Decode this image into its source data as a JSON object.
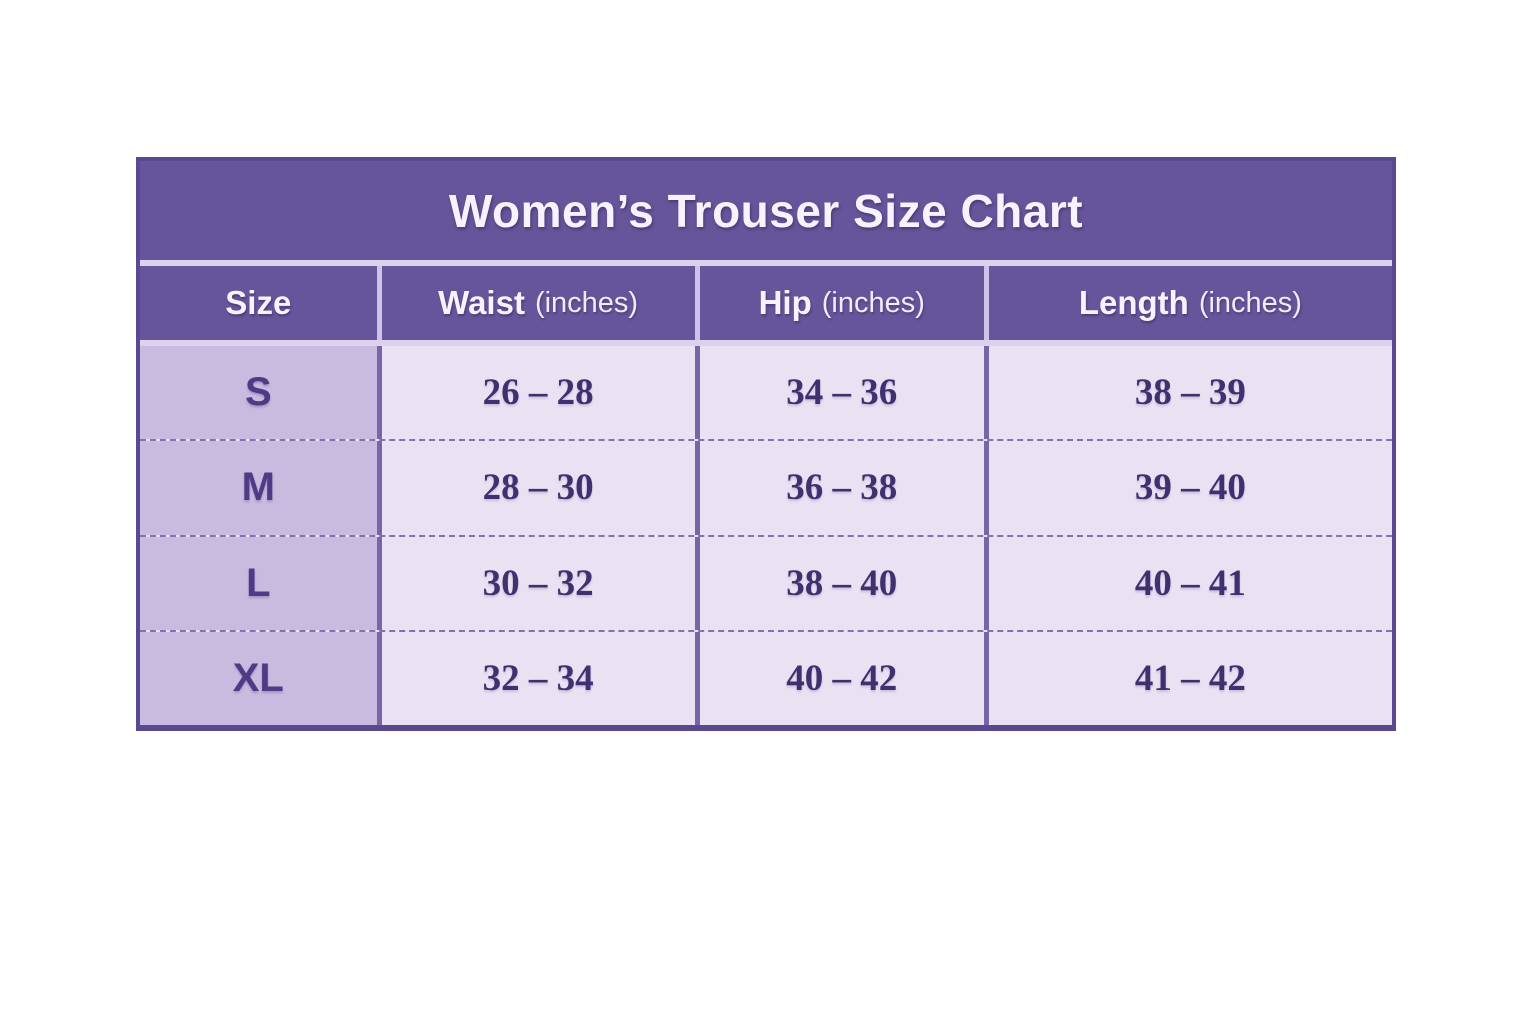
{
  "sizeChart": {
    "title": "Women’s Trouser Size Chart",
    "columns": [
      {
        "label": "Size",
        "unit": ""
      },
      {
        "label": "Waist",
        "unit": "(inches)"
      },
      {
        "label": "Hip",
        "unit": "(inches)"
      },
      {
        "label": "Length",
        "unit": "(inches)"
      }
    ],
    "rows": [
      {
        "size": "S",
        "waist": "26 – 28",
        "hip": "34 – 36",
        "length": "38 – 39"
      },
      {
        "size": "M",
        "waist": "28 – 30",
        "hip": "36 – 38",
        "length": "39 – 40"
      },
      {
        "size": "L",
        "waist": "30 – 32",
        "hip": "38 – 40",
        "length": "40 – 41"
      },
      {
        "size": "XL",
        "waist": "32 – 34",
        "hip": "40 – 42",
        "length": "41 – 42"
      }
    ],
    "colors": {
      "band_purple": "#66559a",
      "light_separator": "#dcd2ee",
      "header_divider": "#cfc2e8",
      "size_column_bg": "#c9badf",
      "data_cell_bg": "#e9e2f3",
      "data_text": "#3f3070",
      "size_text": "#4e3a85",
      "dashed_divider": "#8372b1",
      "data_divider": "#7765a8",
      "outer_border": "#5a4991",
      "header_text": "#f7f3fc",
      "page_background": "#ffffff"
    }
  },
  "chart_data": {
    "type": "table",
    "title": "Women’s Trouser Size Chart",
    "columns": [
      "Size",
      "Waist (inches)",
      "Hip (inches)",
      "Length (inches)"
    ],
    "rows": [
      [
        "S",
        "26 – 28",
        "34 – 36",
        "38 – 39"
      ],
      [
        "M",
        "28 – 30",
        "36 – 38",
        "39 – 40"
      ],
      [
        "L",
        "30 – 32",
        "38 – 40",
        "40 – 41"
      ],
      [
        "XL",
        "32 – 34",
        "40 – 42",
        "41 – 42"
      ]
    ],
    "measurements": [
      {
        "size": "S",
        "waist_in": [
          26,
          28
        ],
        "hip_in": [
          34,
          36
        ],
        "length_in": [
          38,
          39
        ]
      },
      {
        "size": "M",
        "waist_in": [
          28,
          30
        ],
        "hip_in": [
          36,
          38
        ],
        "length_in": [
          39,
          40
        ]
      },
      {
        "size": "L",
        "waist_in": [
          30,
          32
        ],
        "hip_in": [
          38,
          40
        ],
        "length_in": [
          40,
          41
        ]
      },
      {
        "size": "XL",
        "waist_in": [
          32,
          34
        ],
        "hip_in": [
          40,
          42
        ],
        "length_in": [
          41,
          42
        ]
      }
    ],
    "units": "inches",
    "layout": {
      "title_position": "top-center",
      "header_style": "purple-band",
      "row_dividers": "dashed"
    }
  }
}
